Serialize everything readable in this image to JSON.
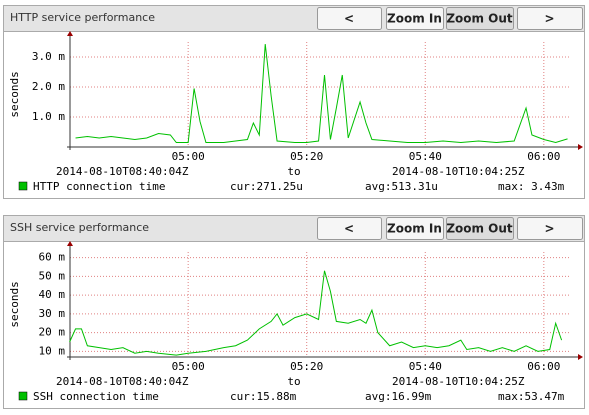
{
  "chart_data": [
    {
      "type": "line",
      "title": "HTTP service performance",
      "y_label": "seconds",
      "buttons": [
        "<",
        "Zoom In",
        "Zoom Out",
        ">"
      ],
      "range": [
        "2014-08-10T08:40:04Z",
        "to",
        "2014-08-10T10:04:25Z"
      ],
      "stats": [
        "cur:271.25u",
        "avg:513.31u",
        "max: 3.43m"
      ],
      "xlim": [
        "04:40:04",
        "06:04:25"
      ],
      "xticks": [
        "05:00",
        "05:20",
        "05:40",
        "06:00"
      ],
      "ylim": [
        0,
        3.5
      ],
      "yticks": [
        {
          "value": 1,
          "label": "1.0 m"
        },
        {
          "value": 2,
          "label": "2.0 m"
        },
        {
          "value": 3,
          "label": "3.0 m"
        }
      ],
      "grid": true,
      "x": [
        "04:41",
        "04:43",
        "04:45",
        "04:47",
        "04:49",
        "04:51",
        "04:53",
        "04:55",
        "04:57",
        "04:58",
        "05:00",
        "05:01",
        "05:02",
        "05:03",
        "05:06",
        "05:08",
        "05:10",
        "05:11",
        "05:12",
        "05:13",
        "05:14",
        "05:15",
        "05:18",
        "05:20",
        "05:22",
        "05:23",
        "05:24",
        "05:25",
        "05:26",
        "05:27",
        "05:29",
        "05:30",
        "05:31",
        "05:34",
        "05:37",
        "05:40",
        "05:43",
        "05:46",
        "05:49",
        "05:52",
        "05:55",
        "05:57",
        "05:58",
        "06:00",
        "06:02",
        "06:04"
      ],
      "series": [
        {
          "name": "HTTP connection time",
          "color": "#00c000",
          "values": [
            0.3,
            0.35,
            0.3,
            0.35,
            0.3,
            0.25,
            0.3,
            0.45,
            0.4,
            0.15,
            0.15,
            1.95,
            0.85,
            0.15,
            0.15,
            0.2,
            0.25,
            0.8,
            0.4,
            3.43,
            1.7,
            0.2,
            0.15,
            0.15,
            0.2,
            2.4,
            0.25,
            1.3,
            2.4,
            0.3,
            1.5,
            0.8,
            0.25,
            0.2,
            0.15,
            0.15,
            0.2,
            0.15,
            0.2,
            0.15,
            0.2,
            1.3,
            0.4,
            0.25,
            0.15,
            0.27
          ]
        }
      ]
    },
    {
      "type": "line",
      "title": "SSH service performance",
      "y_label": "seconds",
      "buttons": [
        "<",
        "Zoom In",
        "Zoom Out",
        ">"
      ],
      "range": [
        "2014-08-10T08:40:04Z",
        "to",
        "2014-08-10T10:04:25Z"
      ],
      "stats": [
        "cur:15.88m",
        "avg:16.99m",
        "max:53.47m"
      ],
      "xlim": [
        "04:40:04",
        "06:04:25"
      ],
      "xticks": [
        "05:00",
        "05:20",
        "05:40",
        "06:00"
      ],
      "ylim": [
        7,
        63
      ],
      "yticks": [
        {
          "value": 10,
          "label": "10 m"
        },
        {
          "value": 20,
          "label": "20 m"
        },
        {
          "value": 30,
          "label": "30 m"
        },
        {
          "value": 40,
          "label": "40 m"
        },
        {
          "value": 50,
          "label": "50 m"
        },
        {
          "value": 60,
          "label": "60 m"
        }
      ],
      "grid": true,
      "x": [
        "04:40",
        "04:41",
        "04:42",
        "04:43",
        "04:45",
        "04:47",
        "04:49",
        "04:51",
        "04:53",
        "04:55",
        "04:58",
        "05:00",
        "05:03",
        "05:06",
        "05:08",
        "05:10",
        "05:12",
        "05:14",
        "05:15",
        "05:16",
        "05:18",
        "05:20",
        "05:22",
        "05:23",
        "05:24",
        "05:25",
        "05:27",
        "05:29",
        "05:30",
        "05:31",
        "05:32",
        "05:34",
        "05:36",
        "05:38",
        "05:40",
        "05:42",
        "05:44",
        "05:46",
        "05:47",
        "05:49",
        "05:51",
        "05:53",
        "05:55",
        "05:57",
        "05:59",
        "06:01",
        "06:02",
        "06:03"
      ],
      "series": [
        {
          "name": "SSH connection time",
          "color": "#00c000",
          "values": [
            15,
            22,
            22,
            13,
            12,
            11,
            12,
            9,
            10,
            9,
            8,
            9,
            10,
            12,
            13,
            16,
            22,
            26,
            30,
            24,
            28,
            30,
            27,
            53,
            42,
            26,
            25,
            27,
            25,
            32,
            20,
            13,
            15,
            12,
            13,
            12,
            13,
            16,
            11,
            12,
            10,
            12,
            10,
            13,
            10,
            11,
            25,
            16
          ]
        }
      ]
    }
  ]
}
